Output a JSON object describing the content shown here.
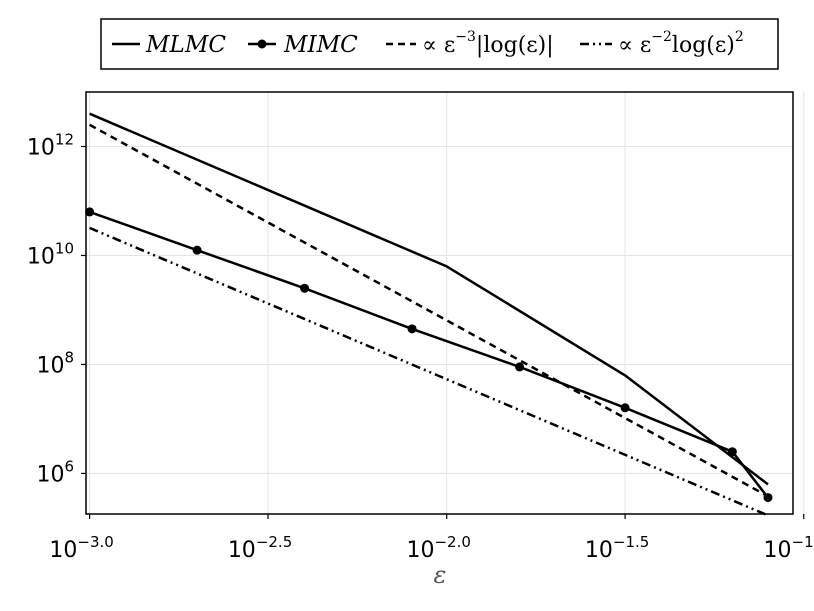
{
  "chart_data": {
    "type": "line",
    "title": "",
    "xlabel": "ε",
    "ylabel": "",
    "xscale": "log10",
    "yscale": "log10",
    "xlim": [
      0.000977,
      0.0933
    ],
    "ylim": [
      180000,
      10000000000000.0
    ],
    "grid": true,
    "legend_position": "top",
    "x_ticks": [
      {
        "value": 0.001,
        "base": "10",
        "exp": "−3.0"
      },
      {
        "value": 0.00316,
        "base": "10",
        "exp": "−2.5"
      },
      {
        "value": 0.01,
        "base": "10",
        "exp": "−2.0"
      },
      {
        "value": 0.0316,
        "base": "10",
        "exp": "−1.5"
      },
      {
        "value": 0.1,
        "base": "10",
        "exp": "−1.0"
      }
    ],
    "y_ticks": [
      {
        "value": 1000000,
        "base": "10",
        "exp": "6"
      },
      {
        "value": 100000000,
        "base": "10",
        "exp": "8"
      },
      {
        "value": 10000000000,
        "base": "10",
        "exp": "10"
      },
      {
        "value": 1000000000000,
        "base": "10",
        "exp": "12"
      }
    ],
    "legend": [
      {
        "label": "MLMC",
        "style": "solid"
      },
      {
        "label": "MIMC",
        "style": "solid-marker"
      },
      {
        "label_prefix": "∝ ε",
        "label_sup": "−3",
        "label_suffix": "|log(ε)|",
        "style": "dashed"
      },
      {
        "label_prefix": "∝ ε",
        "label_sup": "−2",
        "label_suffix": "log(ε)",
        "label_sup2": "2",
        "style": "dashdotdot"
      }
    ],
    "series": [
      {
        "name": "MLMC",
        "style": "solid",
        "markers": false,
        "x": [
          0.001,
          0.01,
          0.0316,
          0.0794
        ],
        "y": [
          4000000000000.0,
          6300000000.0,
          63000000.0,
          630000.0
        ]
      },
      {
        "name": "MIMC",
        "style": "solid",
        "markers": true,
        "x": [
          0.001,
          0.002,
          0.004,
          0.008,
          0.016,
          0.0316,
          0.0631,
          0.0794
        ],
        "y": [
          63000000000.0,
          12500000000.0,
          2500000000.0,
          450000000.0,
          90000000.0,
          16000000.0,
          2500000.0,
          360000.0
        ]
      },
      {
        "name": "∝ ε^−3 |log(ε)|",
        "style": "dashed",
        "markers": false,
        "x": [
          0.001,
          0.0794
        ],
        "y": [
          2500000000000.0,
          380000.0
        ]
      },
      {
        "name": "∝ ε^−2 log(ε)^2",
        "style": "dashdotdot",
        "markers": false,
        "x": [
          0.001,
          0.0794
        ],
        "y": [
          32000000000.0,
          170000.0
        ]
      }
    ]
  }
}
